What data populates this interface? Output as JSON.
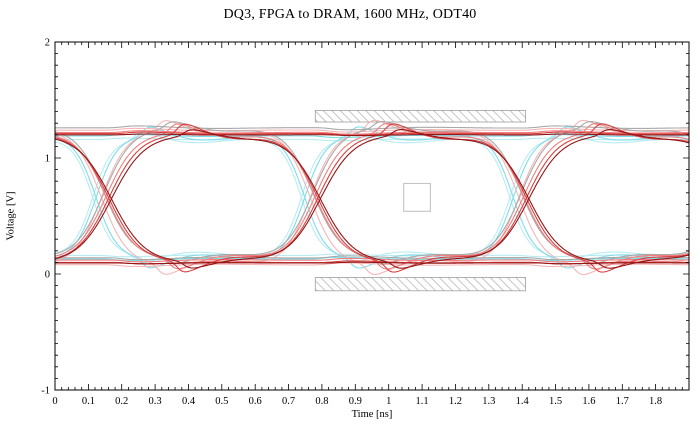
{
  "chart_data": {
    "type": "line",
    "subtype": "eye-diagram",
    "title": "DQ3, FPGA to DRAM, 1600 MHz, ODT40",
    "xlabel": "Time [ns]",
    "ylabel": "Voltage [V]",
    "xlim": [
      0,
      1.9
    ],
    "ylim": [
      -1,
      2
    ],
    "grid": false,
    "x_major_ticks": [
      0,
      0.1,
      0.2,
      0.3,
      0.4,
      0.5,
      0.6,
      0.7,
      0.8,
      0.9,
      1.0,
      1.1,
      1.2,
      1.3,
      1.4,
      1.5,
      1.6,
      1.7,
      1.8
    ],
    "x_tick_labels": [
      "0",
      "0.1",
      "0.2",
      "0.3",
      "0.4",
      "0.5",
      "0.6",
      "0.7",
      "0.8",
      "0.9",
      "1",
      "1.1",
      "1.2",
      "1.3",
      "1.4",
      "1.5",
      "1.6",
      "1.7",
      "1.8"
    ],
    "y_major_ticks": [
      -1,
      0,
      1,
      2
    ],
    "y_tick_labels": [
      "-1",
      "0",
      "1",
      "2"
    ],
    "x_minor_step": 0.02,
    "y_minor_step": 0.1,
    "frame_color": "#000000",
    "eye": {
      "signal": "DQ3",
      "path": "FPGA to DRAM",
      "rate_mhz": 1600,
      "odt": "ODT40",
      "unit_interval_ns": 0.625,
      "first_crossing_ns": 0.135,
      "crossing_voltage_v": 0.66,
      "high_level_v": 1.22,
      "low_level_v": 0.11,
      "overshoot_peak_v": 1.31,
      "undershoot_min_v": 0.0,
      "variants": [
        {
          "color": "#b7ecf3",
          "high": 1.16,
          "low": 0.16,
          "tau": 0.058,
          "delay": -0.022,
          "os": 0.09,
          "rip": 0.02
        },
        {
          "color": "#7fdde9",
          "high": 1.19,
          "low": 0.13,
          "tau": 0.064,
          "delay": -0.012,
          "os": 0.11,
          "rip": 0.025
        },
        {
          "color": "#f6b6b6",
          "high": 1.24,
          "low": 0.08,
          "tau": 0.078,
          "delay": 0.004,
          "os": 0.12,
          "rip": 0.028
        },
        {
          "color": "#a9a9a9",
          "high": 1.26,
          "low": 0.14,
          "tau": 0.084,
          "delay": 0.012,
          "os": 0.08,
          "rip": 0.03
        },
        {
          "color": "#f07f7f",
          "high": 1.22,
          "low": 0.12,
          "tau": 0.088,
          "delay": 0.018,
          "os": 0.11,
          "rip": 0.027
        },
        {
          "color": "#d94040",
          "high": 1.21,
          "low": 0.1,
          "tau": 0.094,
          "delay": 0.026,
          "os": 0.12,
          "rip": 0.024
        },
        {
          "color": "#941616",
          "high": 1.2,
          "low": 0.095,
          "tau": 0.1,
          "delay": 0.034,
          "os": 0.07,
          "rip": 0.012
        }
      ]
    },
    "masks": [
      {
        "name": "mask-top",
        "style": "hatched",
        "x0": 0.78,
        "x1": 1.41,
        "y0": 1.31,
        "y1": 1.41
      },
      {
        "name": "mask-bottom",
        "style": "hatched",
        "x0": 0.78,
        "x1": 1.41,
        "y0": -0.145,
        "y1": -0.03
      },
      {
        "name": "mask-center",
        "style": "outline",
        "x0": 1.045,
        "x1": 1.125,
        "y0": 0.54,
        "y1": 0.78
      }
    ],
    "mask_style": {
      "hatch_color": "#b8b8b8",
      "border_color": "#9e9e9e",
      "outline_color": "#c4c4c4",
      "fill": "#ffffff"
    }
  }
}
